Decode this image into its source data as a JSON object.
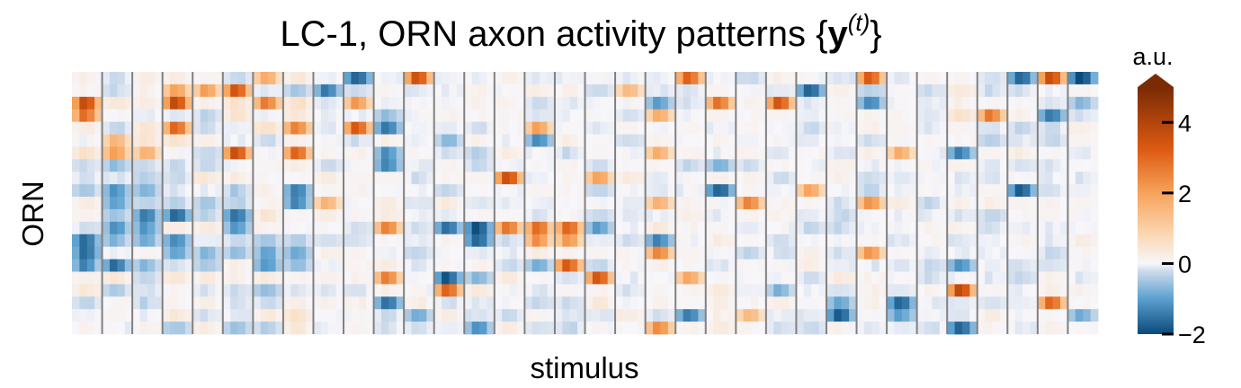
{
  "chart_data": {
    "type": "heatmap",
    "title": {
      "prefix": "LC-1, ORN axon activity patterns ",
      "open_brace": "{",
      "symbol": "y",
      "superscript": "(t)",
      "close_brace": "}"
    },
    "xlabel": "stimulus",
    "ylabel": "ORN",
    "colorbar": {
      "label": "a.u.",
      "ticks": [
        4,
        2,
        0,
        -2
      ],
      "tick_labels": [
        "4",
        "2",
        "0",
        "−2"
      ],
      "range": [
        -2,
        5
      ],
      "extend": "max",
      "colormap": "diverging blue-white-orange",
      "colors": {
        "negative": "#0b4a7a",
        "mid_negative": "#5ba0cf",
        "zero": "#f7f6fa",
        "mid_positive": "#f7a35b",
        "positive": "#7a2a04"
      }
    },
    "n_groups": 34,
    "columns_per_group": 4,
    "n_orn_rows": 21,
    "separator_color": "#808080",
    "note_values": "cell values are estimated visually; approximate activity in a.u."
  }
}
